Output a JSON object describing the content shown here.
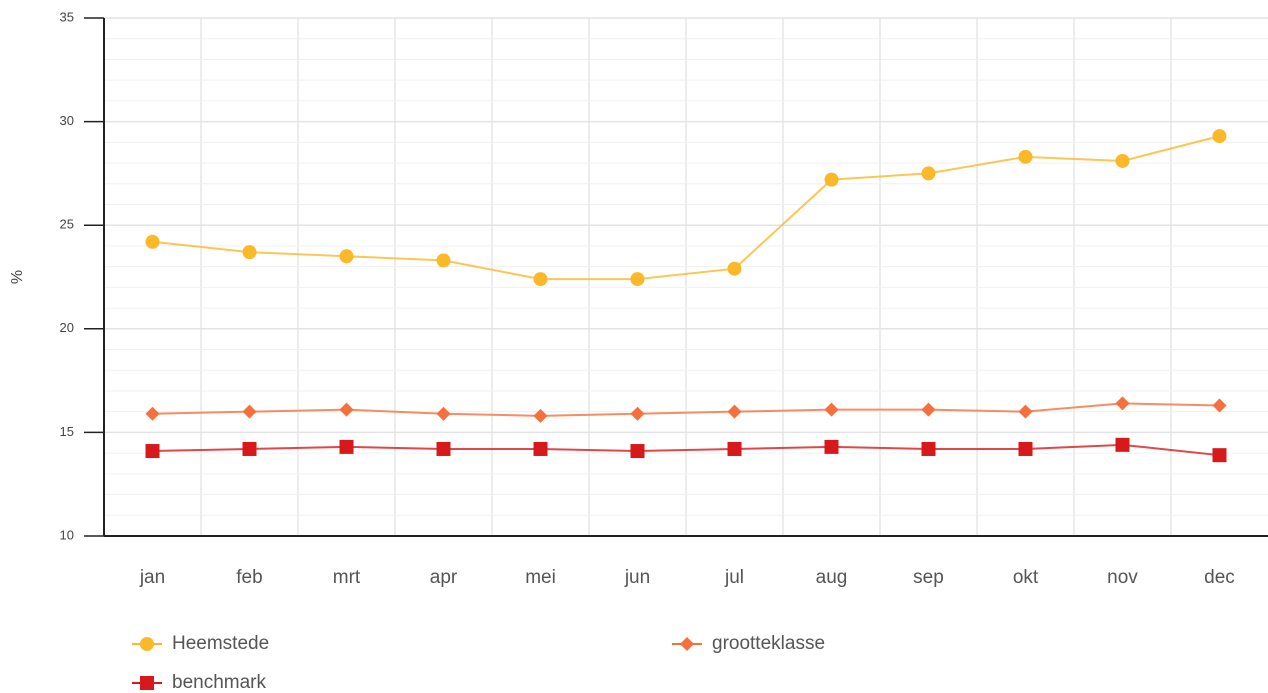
{
  "chart_data": {
    "type": "line",
    "y_label": "%",
    "categories": [
      "jan",
      "feb",
      "mrt",
      "apr",
      "mei",
      "jun",
      "jul",
      "aug",
      "sep",
      "okt",
      "nov",
      "dec"
    ],
    "series": [
      {
        "name": "Heemstede",
        "color": "#fbb829",
        "marker": "circle",
        "values": [
          24.2,
          23.7,
          23.5,
          23.3,
          22.4,
          22.4,
          22.9,
          27.2,
          27.5,
          28.3,
          28.1,
          29.3
        ]
      },
      {
        "name": "grootteklasse",
        "color": "#f5703c",
        "marker": "diamond",
        "values": [
          15.9,
          16.0,
          16.1,
          15.9,
          15.8,
          15.9,
          16.0,
          16.1,
          16.1,
          16.0,
          16.4,
          16.3
        ]
      },
      {
        "name": "benchmark",
        "color": "#d7191c",
        "marker": "square",
        "values": [
          14.1,
          14.2,
          14.3,
          14.2,
          14.2,
          14.1,
          14.2,
          14.3,
          14.2,
          14.2,
          14.4,
          13.9
        ]
      }
    ],
    "ylim": [
      10,
      35
    ],
    "yticks": [
      10,
      15,
      20,
      25,
      30,
      35
    ],
    "grid": true,
    "minor_grid": true
  }
}
